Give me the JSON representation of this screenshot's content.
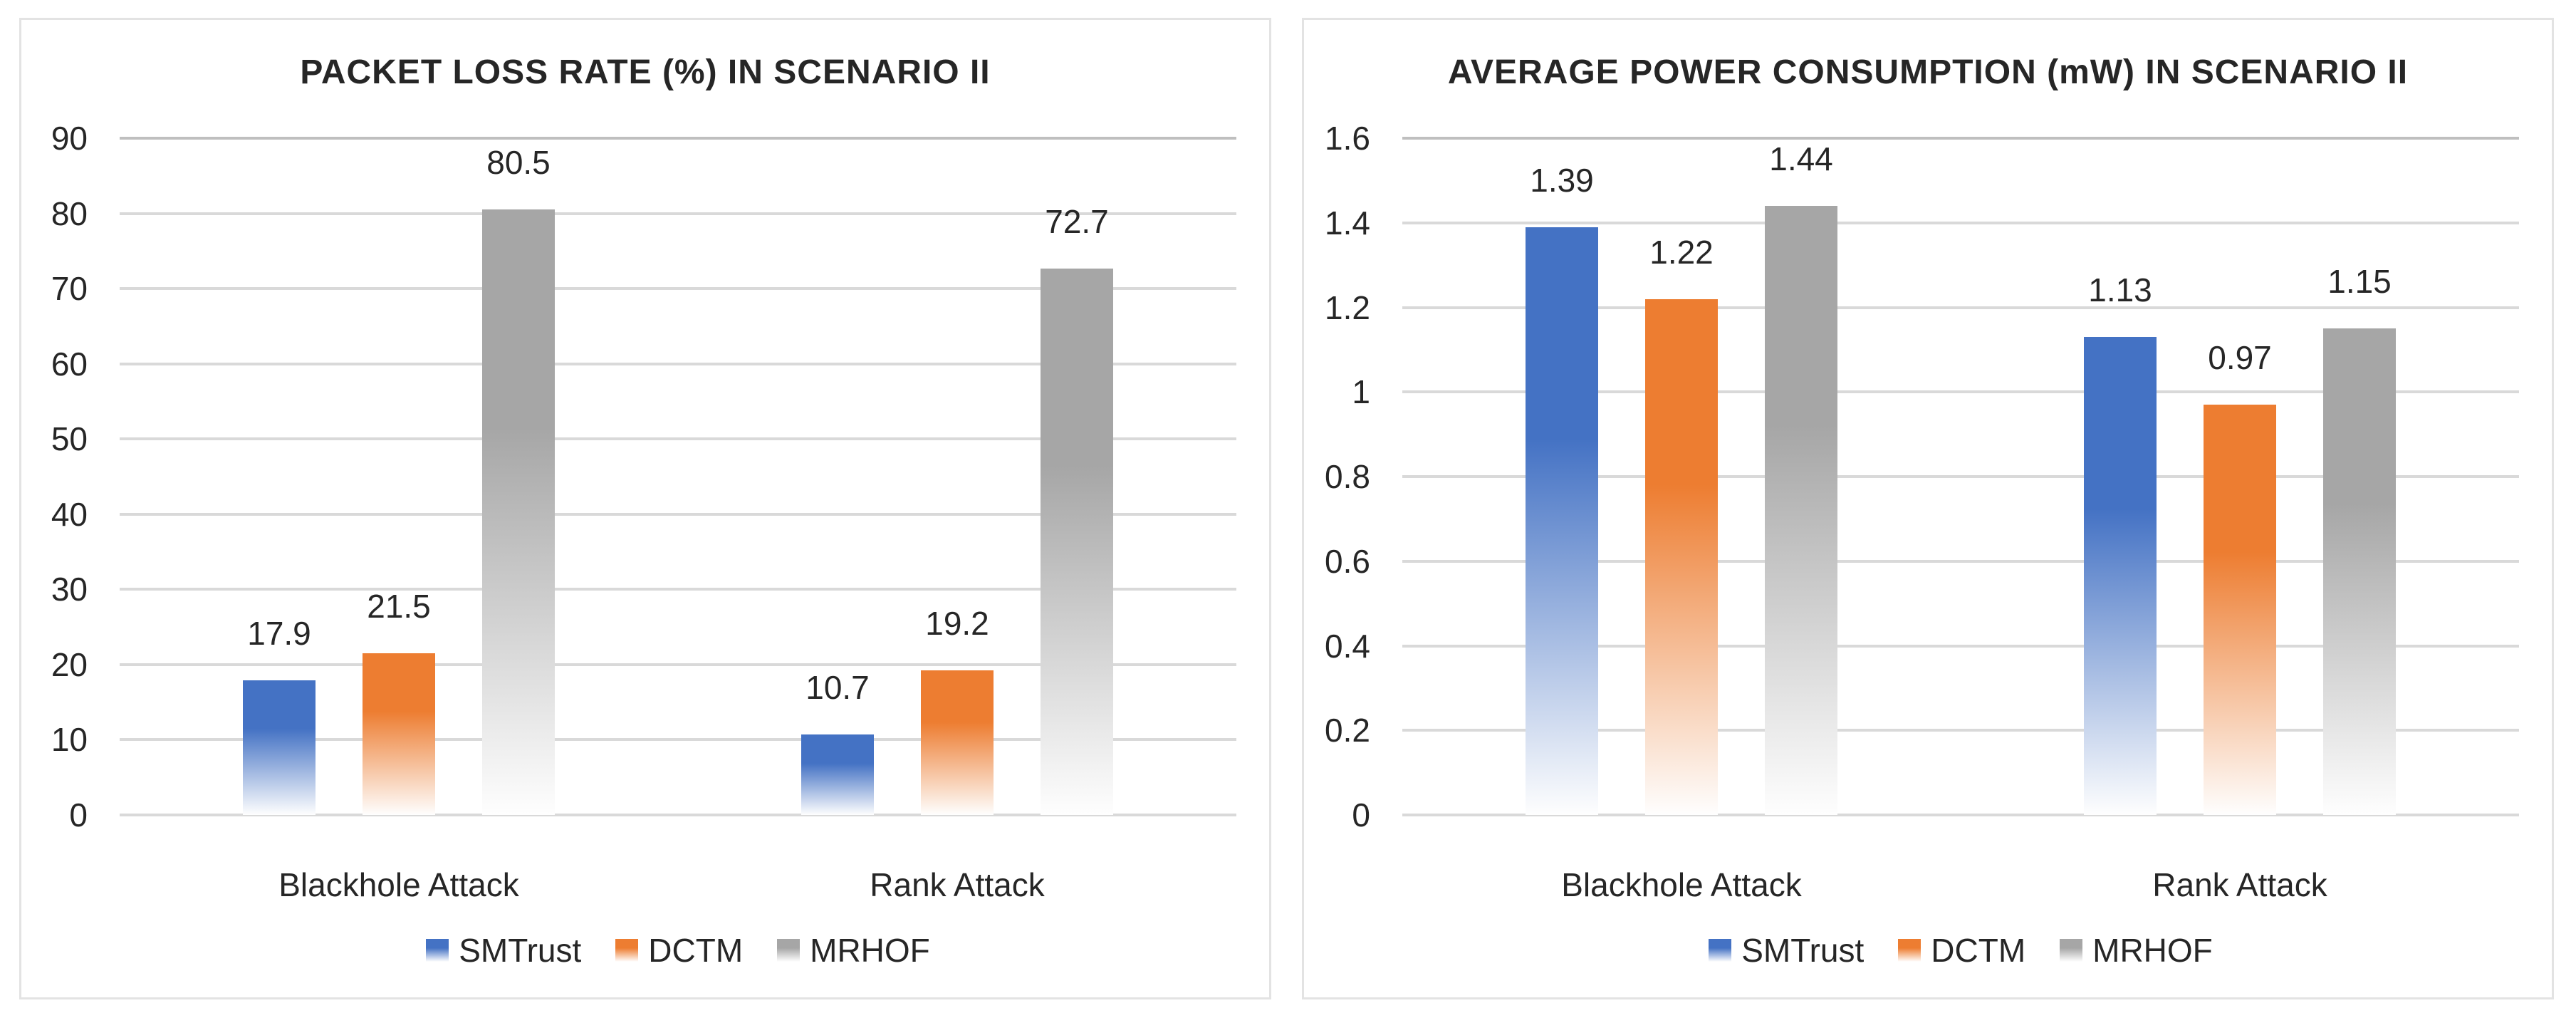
{
  "page": {
    "background": "#FFFFFF"
  },
  "colors": {
    "gridline": "#D9D9D9",
    "gridline_top": "#BFBFBF",
    "text": "#262626",
    "panel_border": "#E3E3E3",
    "series_blue": "#4472C4",
    "series_orange": "#ED7D31",
    "series_gray": "#A6A6A6"
  },
  "chart_data": [
    {
      "type": "bar",
      "title": "PACKET LOSS RATE (%) IN SCENARIO II",
      "categories": [
        "Blackhole Attack",
        "Rank Attack"
      ],
      "series": [
        {
          "name": "SMTrust",
          "color": "#4472C4",
          "values": [
            17.9,
            10.7
          ],
          "labels": [
            "17.9",
            "10.7"
          ]
        },
        {
          "name": "DCTM",
          "color": "#ED7D31",
          "values": [
            21.5,
            19.2
          ],
          "labels": [
            "21.5",
            "19.2"
          ]
        },
        {
          "name": "MRHOF",
          "color": "#A6A6A6",
          "values": [
            80.5,
            72.7
          ],
          "labels": [
            "80.5",
            "72.7"
          ]
        }
      ],
      "ylim": [
        0,
        90
      ],
      "ytick_values": [
        0,
        10,
        20,
        30,
        40,
        50,
        60,
        70,
        80,
        90
      ],
      "ytick_labels": [
        "0",
        "10",
        "20",
        "30",
        "40",
        "50",
        "60",
        "70",
        "80",
        "90"
      ],
      "grid": true,
      "legend_position": "bottom",
      "data_labels_shown": true
    },
    {
      "type": "bar",
      "title": "AVERAGE POWER CONSUMPTION (mW) IN SCENARIO II",
      "categories": [
        "Blackhole Attack",
        "Rank Attack"
      ],
      "series": [
        {
          "name": "SMTrust",
          "color": "#4472C4",
          "values": [
            1.39,
            1.13
          ],
          "labels": [
            "1.39",
            "1.13"
          ]
        },
        {
          "name": "DCTM",
          "color": "#ED7D31",
          "values": [
            1.22,
            0.97
          ],
          "labels": [
            "1.22",
            "0.97"
          ]
        },
        {
          "name": "MRHOF",
          "color": "#A6A6A6",
          "values": [
            1.44,
            1.15
          ],
          "labels": [
            "1.44",
            "1.15"
          ]
        }
      ],
      "ylim": [
        0,
        1.6
      ],
      "ytick_values": [
        0,
        0.2,
        0.4,
        0.6,
        0.8,
        1,
        1.2,
        1.4,
        1.6
      ],
      "ytick_labels": [
        "0",
        "0.2",
        "0.4",
        "0.6",
        "0.8",
        "1",
        "1.2",
        "1.4",
        "1.6"
      ],
      "grid": true,
      "legend_position": "bottom",
      "data_labels_shown": true
    }
  ]
}
